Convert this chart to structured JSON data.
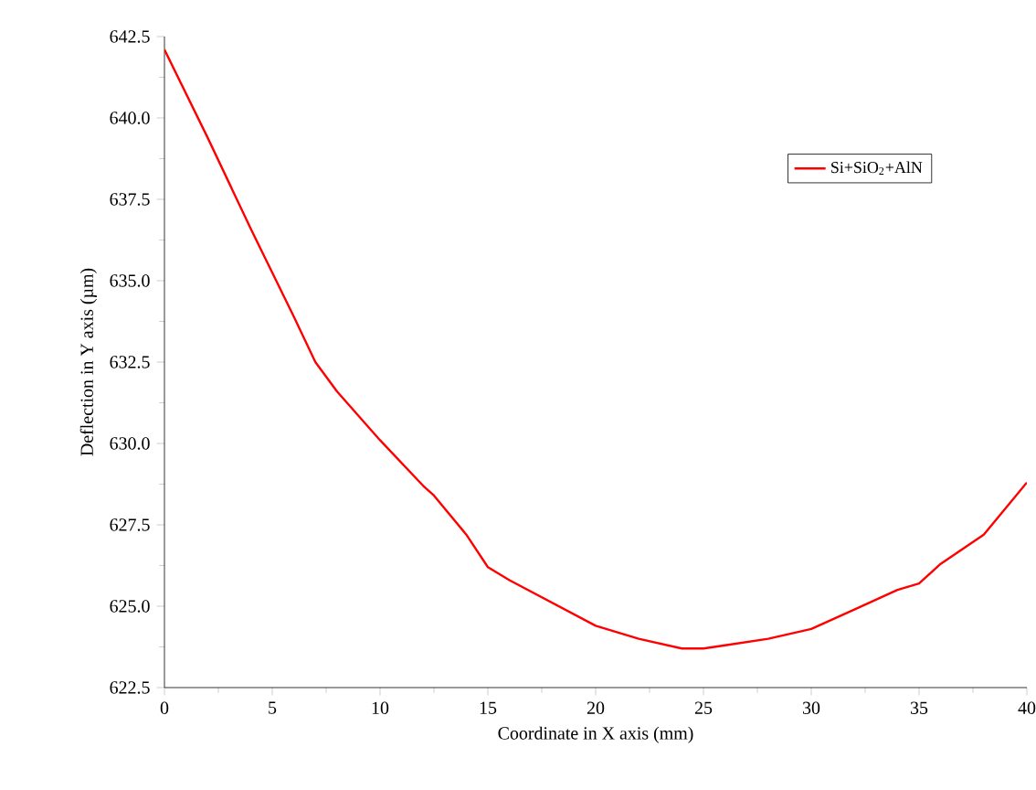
{
  "chart_data": {
    "type": "line",
    "xlabel": "Coordinate in X axis (mm)",
    "ylabel": "Deflection in Y axis (µm)",
    "x": [
      0,
      2,
      4,
      6,
      7,
      8,
      10,
      12,
      12.5,
      14,
      15,
      16,
      18,
      20,
      22,
      24,
      25,
      26,
      28,
      30,
      32,
      34,
      35,
      36,
      38,
      39,
      40
    ],
    "series": [
      {
        "name": "Si+SiO$_{2}$+AlN",
        "color": "#ff0000",
        "values": [
          642.1,
          639.4,
          636.6,
          633.9,
          632.5,
          631.6,
          630.1,
          628.7,
          628.4,
          627.2,
          626.2,
          625.8,
          625.1,
          624.4,
          624.0,
          623.7,
          623.7,
          623.8,
          624.0,
          624.3,
          624.9,
          625.5,
          625.7,
          626.3,
          627.2,
          628.0,
          628.8
        ]
      }
    ],
    "xlim": [
      0,
      40
    ],
    "xticks": [
      0,
      5,
      10,
      15,
      20,
      25,
      30,
      35,
      40
    ],
    "ylim": [
      622.5,
      642.5
    ],
    "yticks": [
      {
        "value": 622.5,
        "label": "622.5"
      },
      {
        "value": 625,
        "label": "625.0"
      },
      {
        "value": 627.5,
        "label": "627.5"
      },
      {
        "value": 630,
        "label": "630.0"
      },
      {
        "value": 632.5,
        "label": "632.5"
      },
      {
        "value": 635,
        "label": "635.0"
      },
      {
        "value": 637.5,
        "label": "637.5"
      },
      {
        "value": 640,
        "label": "640.0"
      },
      {
        "value": 642.5,
        "label": "642.5"
      }
    ],
    "grid": false,
    "legend": "top right",
    "marker": "none",
    "line_style": "solid"
  }
}
